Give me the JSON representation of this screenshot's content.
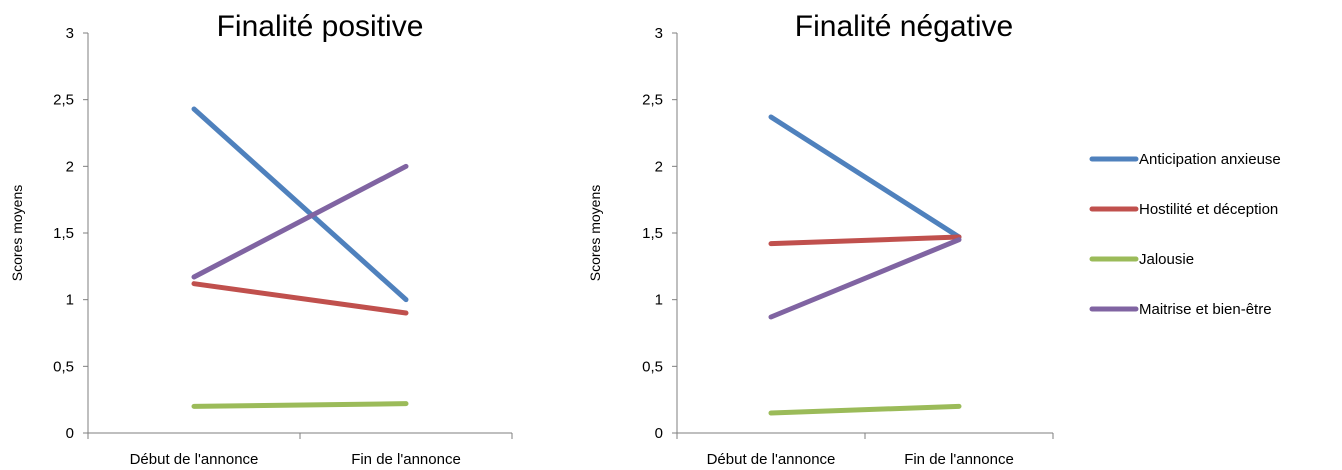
{
  "chart_data": [
    {
      "type": "line",
      "title": "Finalité positive",
      "xlabel": "",
      "ylabel": "Scores moyens",
      "categories": [
        "Début de l'annonce",
        "Fin de l'annonce"
      ],
      "ylim": [
        0,
        3
      ],
      "yticks": [
        "0",
        "0,5",
        "1",
        "1,5",
        "2",
        "2,5",
        "3"
      ],
      "series": [
        {
          "name": "Anticipation anxieuse",
          "color": "#4f81bd",
          "values": [
            2.43,
            1.0
          ]
        },
        {
          "name": "Hostilité et déception",
          "color": "#c0504d",
          "values": [
            1.12,
            0.9
          ]
        },
        {
          "name": "Jalousie",
          "color": "#9bbb59",
          "values": [
            0.2,
            0.22
          ]
        },
        {
          "name": "Maitrise et bien-être",
          "color": "#8064a2",
          "values": [
            1.17,
            2.0
          ]
        }
      ]
    },
    {
      "type": "line",
      "title": "Finalité négative",
      "xlabel": "",
      "ylabel": "Scores moyens",
      "categories": [
        "Début de l'annonce",
        "Fin de l'annonce"
      ],
      "ylim": [
        0,
        3
      ],
      "yticks": [
        "0",
        "0,5",
        "1",
        "1,5",
        "2",
        "2,5",
        "3"
      ],
      "series": [
        {
          "name": "Anticipation anxieuse",
          "color": "#4f81bd",
          "values": [
            2.37,
            1.47
          ]
        },
        {
          "name": "Hostilité et déception",
          "color": "#c0504d",
          "values": [
            1.42,
            1.47
          ]
        },
        {
          "name": "Jalousie",
          "color": "#9bbb59",
          "values": [
            0.15,
            0.2
          ]
        },
        {
          "name": "Maitrise et bien-être",
          "color": "#8064a2",
          "values": [
            0.87,
            1.45
          ]
        }
      ]
    }
  ],
  "legend": {
    "placement": "right",
    "items": [
      {
        "label": "Anticipation anxieuse",
        "color": "#4f81bd"
      },
      {
        "label": "Hostilité et déception",
        "color": "#c0504d"
      },
      {
        "label": "Jalousie",
        "color": "#9bbb59"
      },
      {
        "label": "Maitrise et bien-être",
        "color": "#8064a2"
      }
    ]
  }
}
